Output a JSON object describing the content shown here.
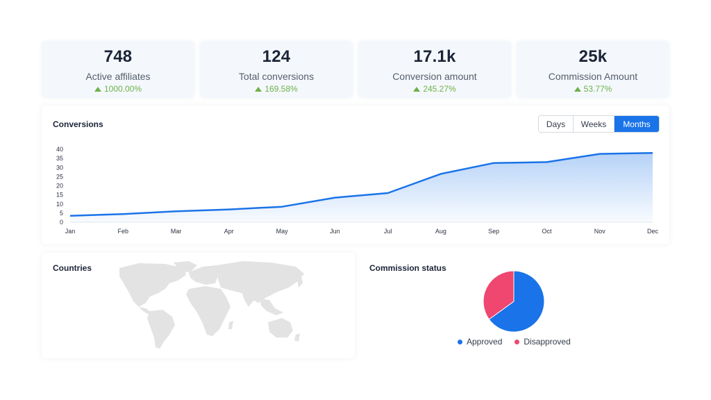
{
  "kpis": [
    {
      "value": "748",
      "label": "Active affiliates",
      "change": "1000.00%"
    },
    {
      "value": "124",
      "label": "Total conversions",
      "change": "169.58%"
    },
    {
      "value": "17.1k",
      "label": "Conversion amount",
      "change": "245.27%"
    },
    {
      "value": "25k",
      "label": "Commission Amount",
      "change": "53.77%"
    }
  ],
  "colors": {
    "accent": "#1a73e8",
    "positive": "#6fb04a",
    "approved": "#1a73e8",
    "disapproved": "#ef476f",
    "map_land": "#e3e3e3"
  },
  "conversions": {
    "title": "Conversions",
    "range_options": [
      "Days",
      "Weeks",
      "Months"
    ],
    "selected_range": "Months"
  },
  "countries": {
    "title": "Countries"
  },
  "commission_status": {
    "title": "Commission status",
    "legend": [
      "Approved",
      "Disapproved"
    ]
  },
  "chart_data": [
    {
      "type": "area",
      "title": "Conversions",
      "x": [
        "Jan",
        "Feb",
        "Mar",
        "Apr",
        "May",
        "Jun",
        "Jul",
        "Aug",
        "Sep",
        "Oct",
        "Nov",
        "Dec"
      ],
      "series": [
        {
          "values": [
            3.5,
            4.5,
            6,
            7,
            8.5,
            13.5,
            16,
            26.5,
            32.5,
            33,
            37.5,
            38
          ]
        }
      ],
      "yticks": [
        0,
        5,
        10,
        15,
        20,
        25,
        30,
        35,
        40
      ],
      "ylim": [
        0,
        40
      ],
      "grid": false,
      "legend": "none"
    },
    {
      "type": "pie",
      "title": "Commission status",
      "categories": [
        "Approved",
        "Disapproved"
      ],
      "values": [
        65,
        35
      ],
      "legend": "bottom"
    }
  ]
}
